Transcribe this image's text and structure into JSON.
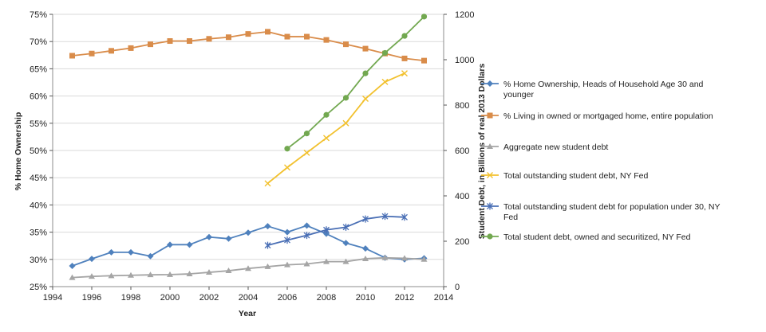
{
  "chart_data": {
    "type": "line",
    "title": "",
    "xlabel": "Year",
    "ylabel_left": "% Home Ownership",
    "ylabel_right": "Student Debt, in Billions of real 2013 Dollars",
    "xlim": [
      1994,
      2014
    ],
    "x_ticks": [
      "1994",
      "1996",
      "1998",
      "2000",
      "2002",
      "2004",
      "2006",
      "2008",
      "2010",
      "2012",
      "2014"
    ],
    "ylim_left": [
      25,
      75
    ],
    "y_ticks_left": [
      "25%",
      "30%",
      "35%",
      "40%",
      "45%",
      "50%",
      "55%",
      "60%",
      "65%",
      "70%",
      "75%"
    ],
    "ylim_right": [
      0,
      1200
    ],
    "y_ticks_right": [
      "0",
      "200",
      "400",
      "600",
      "800",
      "1000",
      "1200"
    ],
    "legend_position": "right",
    "series": [
      {
        "name": "% Home Ownership, Heads of Household Age 30 and younger",
        "legend_lines": [
          "% Home Ownership, Heads of Household Age 30 and",
          "younger"
        ],
        "axis": "left",
        "color": "#4f81bd",
        "marker": "diamond",
        "x": [
          1995,
          1996,
          1997,
          1998,
          1999,
          2000,
          2001,
          2002,
          2003,
          2004,
          2005,
          2006,
          2007,
          2008,
          2009,
          2010,
          2011,
          2012,
          2013
        ],
        "values": [
          28.8,
          30.1,
          31.3,
          31.3,
          30.6,
          32.7,
          32.7,
          34.1,
          33.8,
          34.9,
          36.1,
          35.0,
          36.2,
          34.7,
          33.0,
          32.0,
          30.3,
          30.0,
          30.2
        ]
      },
      {
        "name": "% Living in owned or mortgaged home, entire population",
        "legend_lines": [
          "% Living in owned or mortgaged home, entire population"
        ],
        "axis": "left",
        "color": "#d98c4a",
        "marker": "square",
        "x": [
          1995,
          1996,
          1997,
          1998,
          1999,
          2000,
          2001,
          2002,
          2003,
          2004,
          2005,
          2006,
          2007,
          2008,
          2009,
          2010,
          2011,
          2012,
          2013
        ],
        "values": [
          67.4,
          67.8,
          68.3,
          68.8,
          69.5,
          70.1,
          70.1,
          70.5,
          70.8,
          71.4,
          71.8,
          70.9,
          70.9,
          70.3,
          69.5,
          68.7,
          67.8,
          66.9,
          66.5
        ]
      },
      {
        "name": "Aggregate new student debt",
        "legend_lines": [
          "Aggregate new student debt"
        ],
        "axis": "right",
        "color": "#a5a5a5",
        "marker": "triangle",
        "x": [
          1995,
          1996,
          1997,
          1998,
          1999,
          2000,
          2001,
          2002,
          2003,
          2004,
          2005,
          2006,
          2007,
          2008,
          2009,
          2010,
          2011,
          2012,
          2013
        ],
        "values": [
          40,
          45,
          48,
          50,
          52,
          53,
          56,
          63,
          70,
          80,
          88,
          96,
          100,
          110,
          110,
          123,
          127,
          125,
          120
        ]
      },
      {
        "name": "Total outstanding student debt, NY  Fed",
        "legend_lines": [
          "Total outstanding student debt, NY  Fed"
        ],
        "axis": "right",
        "color": "#f2c12e",
        "marker": "x",
        "x": [
          2005,
          2006,
          2007,
          2008,
          2009,
          2010,
          2011,
          2012
        ],
        "values": [
          455,
          525,
          590,
          655,
          720,
          828,
          902,
          940
        ]
      },
      {
        "name": "Total outstanding student debt for population under 30, NY Fed",
        "legend_lines": [
          "Total outstanding student debt for population under 30, NY",
          "Fed"
        ],
        "axis": "right",
        "color": "#4a6fb5",
        "marker": "star",
        "x": [
          2005,
          2006,
          2007,
          2008,
          2009,
          2010,
          2011,
          2012
        ],
        "values": [
          182,
          205,
          226,
          250,
          262,
          298,
          310,
          306
        ]
      },
      {
        "name": "Total student debt, owned and securitized, NY Fed",
        "legend_lines": [
          "Total student debt, owned and securitized, NY Fed"
        ],
        "axis": "right",
        "color": "#72a850",
        "marker": "circle",
        "x": [
          2006,
          2007,
          2008,
          2009,
          2010,
          2011,
          2012,
          2013
        ],
        "values": [
          608,
          675,
          757,
          832,
          940,
          1030,
          1105,
          1190
        ]
      }
    ]
  }
}
